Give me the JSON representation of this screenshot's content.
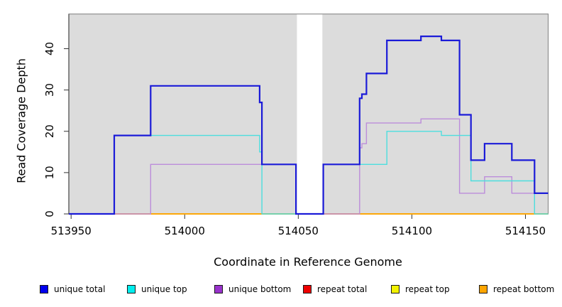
{
  "chart_data": {
    "type": "line",
    "subtype": "step",
    "xlabel": "Coordinate in Reference Genome",
    "ylabel": "Read Coverage Depth",
    "xlim": [
      513949,
      514160
    ],
    "ylim": [
      0,
      48.4
    ],
    "x_ticks": [
      513950,
      514000,
      514050,
      514100,
      514150
    ],
    "y_ticks": [
      0,
      10,
      20,
      30,
      40
    ],
    "grid": false,
    "plot_bg": "#dcdcdc",
    "legend_position": "bottom",
    "mask_region": {
      "from": 514049.4,
      "to": 514060.6,
      "color": "#ffffff"
    },
    "draw_order": [
      3,
      4,
      5,
      2,
      1,
      0
    ],
    "series": [
      {
        "name": "unique total",
        "color": "#0000ee",
        "line_color": "#1b1bd8",
        "width": 2.2,
        "points": [
          [
            513949,
            0
          ],
          [
            513969,
            19
          ],
          [
            513985,
            31
          ],
          [
            514033,
            27
          ],
          [
            514034,
            12
          ],
          [
            514049,
            0
          ],
          [
            514061,
            12
          ],
          [
            514077,
            28
          ],
          [
            514078,
            29
          ],
          [
            514080,
            34
          ],
          [
            514089,
            42
          ],
          [
            514104,
            43
          ],
          [
            514113,
            42
          ],
          [
            514121,
            24
          ],
          [
            514126,
            13
          ],
          [
            514132,
            17
          ],
          [
            514144,
            13
          ],
          [
            514154,
            5
          ]
        ]
      },
      {
        "name": "unique top",
        "color": "#00eeee",
        "line_color": "#4cdede",
        "width": 1.4,
        "points": [
          [
            513949,
            0
          ],
          [
            513969,
            19
          ],
          [
            514033,
            15
          ],
          [
            514034,
            0
          ],
          [
            514061,
            12
          ],
          [
            514089,
            20
          ],
          [
            514113,
            19
          ],
          [
            514126,
            8
          ],
          [
            514154,
            0
          ]
        ]
      },
      {
        "name": "unique bottom",
        "color": "#9932cc",
        "line_color": "#bc8dda",
        "width": 1.4,
        "points": [
          [
            513949,
            0
          ],
          [
            513985,
            12
          ],
          [
            514049,
            0
          ],
          [
            514077,
            16
          ],
          [
            514078,
            17
          ],
          [
            514080,
            22
          ],
          [
            514104,
            23
          ],
          [
            514121,
            5
          ],
          [
            514132,
            9
          ],
          [
            514144,
            5
          ]
        ]
      },
      {
        "name": "repeat total",
        "color": "#ee0000",
        "line_color": "#d4326a",
        "width": 1.4,
        "points": [
          [
            513949,
            0
          ]
        ]
      },
      {
        "name": "repeat top",
        "color": "#f2f200",
        "line_color": "#f2f200",
        "width": 1.4,
        "points": [
          [
            513949,
            0
          ]
        ]
      },
      {
        "name": "repeat bottom",
        "color": "#ffa500",
        "line_color": "#ffa500",
        "width": 1.7,
        "points": [
          [
            513949,
            0
          ]
        ]
      }
    ]
  }
}
